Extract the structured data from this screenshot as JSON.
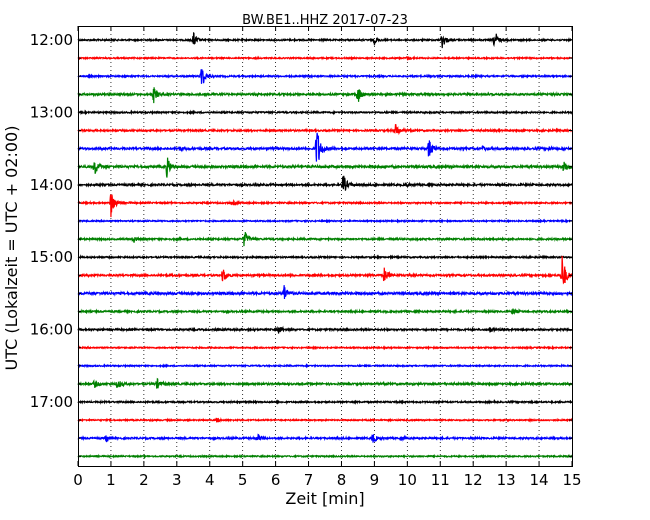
{
  "chart_data": {
    "type": "line",
    "title": "BW.BE1..HHZ 2017-07-23",
    "xlabel": "Zeit  [min]",
    "ylabel": "UTC (Lokalzeit = UTC + 02:00)",
    "xlim": [
      0,
      15
    ],
    "x_ticks": [
      "0",
      "1",
      "2",
      "3",
      "4",
      "5",
      "6",
      "7",
      "8",
      "9",
      "10",
      "11",
      "12",
      "13",
      "14",
      "15"
    ],
    "y_ticks": [
      "12:00",
      "13:00",
      "14:00",
      "15:00",
      "16:00",
      "17:00"
    ],
    "grid": "vertical dotted",
    "traces": [
      {
        "start": "12:00",
        "color": "#000000",
        "noise": 0.7,
        "events": [
          {
            "t": 3.5,
            "amp": 8
          },
          {
            "t": 9.0,
            "amp": 4
          },
          {
            "t": 11.05,
            "amp": 9
          },
          {
            "t": 12.65,
            "amp": 10
          }
        ]
      },
      {
        "start": "12:15",
        "color": "#ff0000",
        "noise": 0.6,
        "events": [
          {
            "t": 10.0,
            "amp": 2
          }
        ]
      },
      {
        "start": "12:30",
        "color": "#0000ff",
        "noise": 0.7,
        "events": [
          {
            "t": 3.75,
            "amp": 13
          }
        ]
      },
      {
        "start": "12:45",
        "color": "#008000",
        "noise": 0.9,
        "events": [
          {
            "t": 2.3,
            "amp": 8
          },
          {
            "t": 8.5,
            "amp": 9
          }
        ]
      },
      {
        "start": "13:00",
        "color": "#000000",
        "noise": 0.7,
        "events": []
      },
      {
        "start": "13:15",
        "color": "#ff0000",
        "noise": 0.8,
        "events": [
          {
            "t": 9.65,
            "amp": 7
          }
        ]
      },
      {
        "start": "13:30",
        "color": "#0000ff",
        "noise": 1.0,
        "events": [
          {
            "t": 3.1,
            "amp": 2
          },
          {
            "t": 7.25,
            "amp": 25
          },
          {
            "t": 10.65,
            "amp": 11
          },
          {
            "t": 12.3,
            "amp": 2
          },
          {
            "t": 14.3,
            "amp": 2
          }
        ]
      },
      {
        "start": "13:45",
        "color": "#008000",
        "noise": 1.1,
        "events": [
          {
            "t": 0.5,
            "amp": 9
          },
          {
            "t": 2.7,
            "amp": 10
          },
          {
            "t": 14.75,
            "amp": 7
          }
        ]
      },
      {
        "start": "14:00",
        "color": "#000000",
        "noise": 0.9,
        "events": [
          {
            "t": 8.05,
            "amp": 11
          },
          {
            "t": 9.95,
            "amp": 2
          }
        ]
      },
      {
        "start": "14:15",
        "color": "#ff0000",
        "noise": 0.7,
        "events": [
          {
            "t": 1.0,
            "amp": 14
          },
          {
            "t": 4.7,
            "amp": 2
          }
        ]
      },
      {
        "start": "14:30",
        "color": "#0000ff",
        "noise": 0.6,
        "events": []
      },
      {
        "start": "14:45",
        "color": "#008000",
        "noise": 0.8,
        "events": [
          {
            "t": 1.7,
            "amp": 3
          },
          {
            "t": 5.05,
            "amp": 9
          }
        ]
      },
      {
        "start": "15:00",
        "color": "#000000",
        "noise": 0.7,
        "events": []
      },
      {
        "start": "15:15",
        "color": "#ff0000",
        "noise": 0.9,
        "events": [
          {
            "t": 4.4,
            "amp": 8
          },
          {
            "t": 9.3,
            "amp": 8
          },
          {
            "t": 14.7,
            "amp": 21
          }
        ]
      },
      {
        "start": "15:30",
        "color": "#0000ff",
        "noise": 1.1,
        "events": [
          {
            "t": 6.25,
            "amp": 9
          }
        ]
      },
      {
        "start": "15:45",
        "color": "#008000",
        "noise": 0.8,
        "events": [
          {
            "t": 13.2,
            "amp": 3
          }
        ]
      },
      {
        "start": "16:00",
        "color": "#000000",
        "noise": 0.8,
        "events": [
          {
            "t": 6.1,
            "amp": 4
          },
          {
            "t": 12.5,
            "amp": 3
          }
        ]
      },
      {
        "start": "16:15",
        "color": "#ff0000",
        "noise": 0.6,
        "events": []
      },
      {
        "start": "16:30",
        "color": "#0000ff",
        "noise": 0.6,
        "events": []
      },
      {
        "start": "16:45",
        "color": "#008000",
        "noise": 0.9,
        "events": [
          {
            "t": 0.5,
            "amp": 4
          },
          {
            "t": 1.2,
            "amp": 5
          },
          {
            "t": 2.4,
            "amp": 5
          }
        ]
      },
      {
        "start": "17:00",
        "color": "#000000",
        "noise": 0.7,
        "events": []
      },
      {
        "start": "17:15",
        "color": "#ff0000",
        "noise": 0.6,
        "events": [
          {
            "t": 4.2,
            "amp": 2
          }
        ]
      },
      {
        "start": "17:30",
        "color": "#0000ff",
        "noise": 0.8,
        "events": [
          {
            "t": 0.85,
            "amp": 4
          },
          {
            "t": 5.45,
            "amp": 4
          },
          {
            "t": 8.95,
            "amp": 5
          },
          {
            "t": 9.8,
            "amp": 2
          }
        ]
      },
      {
        "start": "17:45",
        "color": "#008000",
        "noise": 0.6,
        "events": []
      }
    ]
  }
}
